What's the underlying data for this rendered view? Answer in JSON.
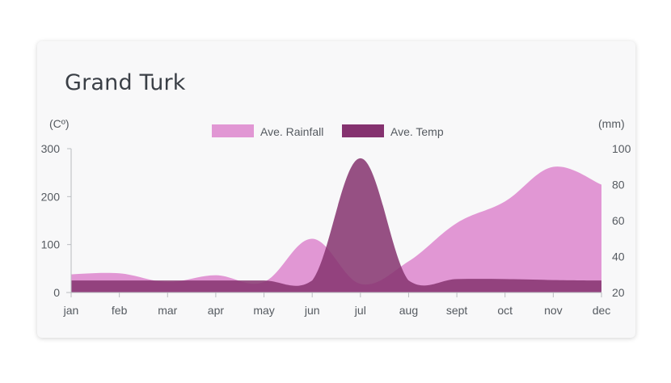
{
  "chart_data": {
    "type": "area",
    "title": "Grand Turk",
    "left_axis_label": "(Cº)",
    "right_axis_label": "(mm)",
    "categories": [
      "jan",
      "feb",
      "mar",
      "apr",
      "may",
      "jun",
      "jul",
      "aug",
      "sept",
      "oct",
      "nov",
      "dec"
    ],
    "y_left": {
      "min": 0,
      "max": 300,
      "ticks": [
        "300",
        "200",
        "100",
        "0"
      ]
    },
    "y_right": {
      "min": 20,
      "max": 100,
      "ticks": [
        "100",
        "80",
        "60",
        "40",
        "20"
      ]
    },
    "legend_position": "top-center",
    "series": [
      {
        "name": "Ave. Rainfall",
        "axis": "left",
        "color": "#e197d4",
        "values": [
          38,
          40,
          22,
          36,
          22,
          112,
          18,
          65,
          145,
          190,
          262,
          225
        ]
      },
      {
        "name": "Ave. Temp",
        "axis": "left",
        "color": "#85326f",
        "values": [
          25,
          25,
          25,
          25,
          25,
          25,
          280,
          25,
          28,
          28,
          26,
          25
        ]
      }
    ]
  }
}
